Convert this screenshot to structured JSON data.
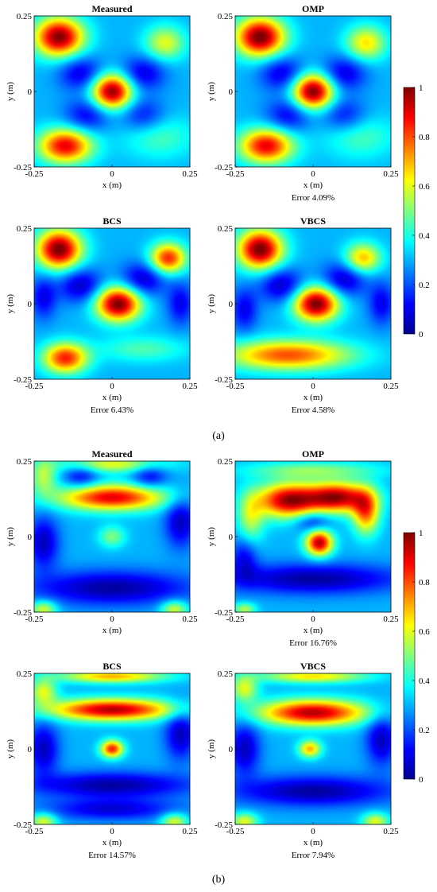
{
  "colormap": [
    "#00008f",
    "#0000ff",
    "#00ffff",
    "#ffff00",
    "#ff0000",
    "#800000"
  ],
  "chart_data": [
    {
      "type": "heatmap",
      "group": "(a)",
      "colorbar": {
        "ticks": [
          "0",
          "0.2",
          "0.4",
          "0.6",
          "0.8",
          "1"
        ],
        "range": [
          0,
          1
        ]
      },
      "panels": [
        {
          "title": "Measured",
          "xlabel": "x (m)",
          "ylabel": "y (m)",
          "xticks": [
            "-0.25",
            "0",
            "0.25"
          ],
          "yticks": [
            "0.25",
            "0",
            "-0.25"
          ],
          "xlim": [
            -0.25,
            0.25
          ],
          "ylim": [
            -0.25,
            0.25
          ],
          "error": "",
          "base": 0.3,
          "blobs": [
            {
              "x": -0.17,
              "y": 0.18,
              "amp": 0.7,
              "sx": 0.055,
              "sy": 0.045
            },
            {
              "x": 0.0,
              "y": 0.0,
              "amp": 0.7,
              "sx": 0.045,
              "sy": 0.04
            },
            {
              "x": -0.15,
              "y": -0.18,
              "amp": 0.6,
              "sx": 0.06,
              "sy": 0.04
            },
            {
              "x": 0.17,
              "y": 0.16,
              "amp": 0.3,
              "sx": 0.045,
              "sy": 0.04
            },
            {
              "x": 0.15,
              "y": -0.15,
              "amp": 0.15,
              "sx": 0.08,
              "sy": 0.05
            },
            {
              "x": -0.1,
              "y": 0.06,
              "amp": -0.22,
              "sx": 0.05,
              "sy": 0.04
            },
            {
              "x": 0.1,
              "y": 0.06,
              "amp": -0.22,
              "sx": 0.05,
              "sy": 0.04
            },
            {
              "x": -0.08,
              "y": -0.08,
              "amp": -0.2,
              "sx": 0.05,
              "sy": 0.04
            },
            {
              "x": 0.1,
              "y": -0.08,
              "amp": -0.18,
              "sx": 0.05,
              "sy": 0.04
            }
          ]
        },
        {
          "title": "OMP",
          "xlabel": "x (m)",
          "ylabel": "y (m)",
          "xticks": [
            "-0.25",
            "0",
            "0.25"
          ],
          "yticks": [
            "0.25",
            "0",
            "-0.25"
          ],
          "xlim": [
            -0.25,
            0.25
          ],
          "ylim": [
            -0.25,
            0.25
          ],
          "error": "Error 4.09%",
          "base": 0.3,
          "blobs": [
            {
              "x": -0.17,
              "y": 0.18,
              "amp": 0.72,
              "sx": 0.055,
              "sy": 0.045
            },
            {
              "x": 0.0,
              "y": 0.0,
              "amp": 0.72,
              "sx": 0.045,
              "sy": 0.04
            },
            {
              "x": -0.15,
              "y": -0.18,
              "amp": 0.6,
              "sx": 0.06,
              "sy": 0.04
            },
            {
              "x": 0.17,
              "y": 0.16,
              "amp": 0.35,
              "sx": 0.045,
              "sy": 0.04
            },
            {
              "x": 0.15,
              "y": -0.15,
              "amp": 0.15,
              "sx": 0.08,
              "sy": 0.05
            },
            {
              "x": -0.1,
              "y": 0.06,
              "amp": -0.22,
              "sx": 0.05,
              "sy": 0.04
            },
            {
              "x": 0.1,
              "y": 0.06,
              "amp": -0.22,
              "sx": 0.05,
              "sy": 0.04
            },
            {
              "x": -0.08,
              "y": -0.08,
              "amp": -0.2,
              "sx": 0.05,
              "sy": 0.04
            },
            {
              "x": 0.1,
              "y": -0.08,
              "amp": -0.18,
              "sx": 0.05,
              "sy": 0.04
            }
          ]
        },
        {
          "title": "BCS",
          "xlabel": "x (m)",
          "ylabel": "y (m)",
          "xticks": [
            "-0.25",
            "0",
            "0.25"
          ],
          "yticks": [
            "0.25",
            "0",
            "-0.25"
          ],
          "xlim": [
            -0.25,
            0.25
          ],
          "ylim": [
            -0.25,
            0.25
          ],
          "error": "Error 6.43%",
          "base": 0.3,
          "blobs": [
            {
              "x": -0.17,
              "y": 0.18,
              "amp": 0.72,
              "sx": 0.05,
              "sy": 0.045
            },
            {
              "x": 0.02,
              "y": 0.0,
              "amp": 0.72,
              "sx": 0.05,
              "sy": 0.04
            },
            {
              "x": -0.15,
              "y": -0.18,
              "amp": 0.55,
              "sx": 0.05,
              "sy": 0.035
            },
            {
              "x": 0.18,
              "y": 0.15,
              "amp": 0.55,
              "sx": 0.04,
              "sy": 0.035
            },
            {
              "x": 0.1,
              "y": -0.15,
              "amp": 0.15,
              "sx": 0.1,
              "sy": 0.03
            },
            {
              "x": -0.1,
              "y": 0.06,
              "amp": -0.25,
              "sx": 0.05,
              "sy": 0.04
            },
            {
              "x": 0.1,
              "y": 0.08,
              "amp": -0.25,
              "sx": 0.05,
              "sy": 0.04
            },
            {
              "x": -0.22,
              "y": 0.02,
              "amp": -0.2,
              "sx": 0.03,
              "sy": 0.05
            },
            {
              "x": 0.22,
              "y": 0.0,
              "amp": -0.2,
              "sx": 0.03,
              "sy": 0.05
            }
          ]
        },
        {
          "title": "VBCS",
          "xlabel": "x (m)",
          "ylabel": "y (m)",
          "xticks": [
            "-0.25",
            "0",
            "0.25"
          ],
          "yticks": [
            "0.25",
            "0",
            "-0.25"
          ],
          "xlim": [
            -0.25,
            0.25
          ],
          "ylim": [
            -0.25,
            0.25
          ],
          "error": "Error 4.58%",
          "base": 0.3,
          "blobs": [
            {
              "x": -0.17,
              "y": 0.18,
              "amp": 0.72,
              "sx": 0.05,
              "sy": 0.045
            },
            {
              "x": 0.01,
              "y": 0.0,
              "amp": 0.72,
              "sx": 0.05,
              "sy": 0.04
            },
            {
              "x": -0.08,
              "y": -0.17,
              "amp": 0.5,
              "sx": 0.14,
              "sy": 0.035
            },
            {
              "x": 0.16,
              "y": 0.15,
              "amp": 0.4,
              "sx": 0.04,
              "sy": 0.035
            },
            {
              "x": -0.1,
              "y": 0.06,
              "amp": -0.25,
              "sx": 0.05,
              "sy": 0.04
            },
            {
              "x": 0.1,
              "y": 0.08,
              "amp": -0.25,
              "sx": 0.05,
              "sy": 0.04
            },
            {
              "x": -0.22,
              "y": -0.02,
              "amp": -0.2,
              "sx": 0.03,
              "sy": 0.05
            },
            {
              "x": 0.22,
              "y": 0.0,
              "amp": -0.2,
              "sx": 0.03,
              "sy": 0.05
            }
          ]
        }
      ]
    },
    {
      "type": "heatmap",
      "group": "(b)",
      "colorbar": {
        "ticks": [
          "0",
          "0.2",
          "0.4",
          "0.6",
          "0.8",
          "1"
        ],
        "range": [
          0,
          1
        ]
      },
      "panels": [
        {
          "title": "Measured",
          "xlabel": "x (m)",
          "ylabel": "y (m)",
          "xticks": [
            "-0.25",
            "0",
            "0.25"
          ],
          "yticks": [
            "0.25",
            "0",
            "-0.25"
          ],
          "xlim": [
            -0.25,
            0.25
          ],
          "ylim": [
            -0.25,
            0.25
          ],
          "error": "",
          "base": 0.3,
          "blobs": [
            {
              "x": 0.0,
              "y": 0.13,
              "amp": 0.6,
              "sx": 0.12,
              "sy": 0.03
            },
            {
              "x": 0.0,
              "y": 0.0,
              "amp": 0.2,
              "sx": 0.03,
              "sy": 0.025
            },
            {
              "x": 0.0,
              "y": 0.24,
              "amp": 0.3,
              "sx": 0.12,
              "sy": 0.02
            },
            {
              "x": -0.22,
              "y": -0.24,
              "amp": 0.3,
              "sx": 0.03,
              "sy": 0.02
            },
            {
              "x": 0.2,
              "y": -0.24,
              "amp": 0.3,
              "sx": 0.03,
              "sy": 0.02
            },
            {
              "x": -0.22,
              "y": 0.2,
              "amp": 0.25,
              "sx": 0.03,
              "sy": 0.04
            },
            {
              "x": 0.0,
              "y": -0.17,
              "amp": -0.28,
              "sx": 0.18,
              "sy": 0.04
            },
            {
              "x": -0.22,
              "y": -0.02,
              "amp": -0.25,
              "sx": 0.035,
              "sy": 0.06
            },
            {
              "x": 0.22,
              "y": 0.05,
              "amp": -0.25,
              "sx": 0.035,
              "sy": 0.06
            },
            {
              "x": -0.1,
              "y": 0.2,
              "amp": -0.2,
              "sx": 0.04,
              "sy": 0.03
            },
            {
              "x": 0.12,
              "y": 0.2,
              "amp": -0.2,
              "sx": 0.04,
              "sy": 0.03
            }
          ]
        },
        {
          "title": "OMP",
          "xlabel": "x (m)",
          "ylabel": "y (m)",
          "xticks": [
            "-0.25",
            "0",
            "0.25"
          ],
          "yticks": [
            "0.25",
            "0",
            "-0.25"
          ],
          "xlim": [
            -0.25,
            0.25
          ],
          "ylim": [
            -0.25,
            0.25
          ],
          "error": "Error 16.76%",
          "base": 0.3,
          "blobs": [
            {
              "x": -0.08,
              "y": 0.12,
              "amp": 0.65,
              "sx": 0.07,
              "sy": 0.04
            },
            {
              "x": 0.08,
              "y": 0.13,
              "amp": 0.65,
              "sx": 0.07,
              "sy": 0.035
            },
            {
              "x": 0.02,
              "y": -0.02,
              "amp": 0.65,
              "sx": 0.03,
              "sy": 0.03
            },
            {
              "x": 0.17,
              "y": 0.08,
              "amp": 0.45,
              "sx": 0.03,
              "sy": 0.05
            },
            {
              "x": -0.2,
              "y": 0.06,
              "amp": 0.25,
              "sx": 0.03,
              "sy": 0.06
            },
            {
              "x": 0.0,
              "y": 0.22,
              "amp": 0.2,
              "sx": 0.15,
              "sy": 0.02
            },
            {
              "x": 0.0,
              "y": -0.14,
              "amp": -0.28,
              "sx": 0.2,
              "sy": 0.035
            },
            {
              "x": 0.0,
              "y": 0.05,
              "amp": -0.2,
              "sx": 0.04,
              "sy": 0.025
            },
            {
              "x": -0.22,
              "y": -0.07,
              "amp": -0.2,
              "sx": 0.03,
              "sy": 0.05
            },
            {
              "x": -0.22,
              "y": -0.24,
              "amp": 0.25,
              "sx": 0.025,
              "sy": 0.015
            }
          ]
        },
        {
          "title": "BCS",
          "xlabel": "x (m)",
          "ylabel": "y (m)",
          "xticks": [
            "-0.25",
            "0",
            "0.25"
          ],
          "yticks": [
            "0.25",
            "0",
            "-0.25"
          ],
          "xlim": [
            -0.25,
            0.25
          ],
          "ylim": [
            -0.25,
            0.25
          ],
          "error": "Error 14.57%",
          "base": 0.3,
          "blobs": [
            {
              "x": 0.0,
              "y": 0.13,
              "amp": 0.65,
              "sx": 0.14,
              "sy": 0.025
            },
            {
              "x": 0.0,
              "y": 0.0,
              "amp": 0.55,
              "sx": 0.025,
              "sy": 0.02
            },
            {
              "x": 0.0,
              "y": 0.24,
              "amp": 0.4,
              "sx": 0.12,
              "sy": 0.015
            },
            {
              "x": -0.22,
              "y": 0.19,
              "amp": 0.3,
              "sx": 0.03,
              "sy": 0.03
            },
            {
              "x": -0.22,
              "y": -0.24,
              "amp": 0.3,
              "sx": 0.03,
              "sy": 0.02
            },
            {
              "x": 0.2,
              "y": -0.24,
              "amp": 0.3,
              "sx": 0.03,
              "sy": 0.02
            },
            {
              "x": 0.0,
              "y": -0.12,
              "amp": -0.28,
              "sx": 0.18,
              "sy": 0.03
            },
            {
              "x": 0.0,
              "y": -0.2,
              "amp": -0.22,
              "sx": 0.15,
              "sy": 0.025
            },
            {
              "x": -0.22,
              "y": 0.0,
              "amp": -0.25,
              "sx": 0.035,
              "sy": 0.06
            },
            {
              "x": 0.22,
              "y": 0.05,
              "amp": -0.25,
              "sx": 0.035,
              "sy": 0.06
            }
          ]
        },
        {
          "title": "VBCS",
          "xlabel": "x (m)",
          "ylabel": "y (m)",
          "xticks": [
            "-0.25",
            "0",
            "0.25"
          ],
          "yticks": [
            "0.25",
            "0",
            "-0.25"
          ],
          "xlim": [
            -0.25,
            0.25
          ],
          "ylim": [
            -0.25,
            0.25
          ],
          "error": "Error 7.94%",
          "base": 0.3,
          "blobs": [
            {
              "x": 0.0,
              "y": 0.12,
              "amp": 0.65,
              "sx": 0.12,
              "sy": 0.03
            },
            {
              "x": -0.01,
              "y": 0.0,
              "amp": 0.4,
              "sx": 0.025,
              "sy": 0.02
            },
            {
              "x": 0.0,
              "y": 0.24,
              "amp": 0.35,
              "sx": 0.12,
              "sy": 0.015
            },
            {
              "x": -0.22,
              "y": 0.2,
              "amp": 0.3,
              "sx": 0.03,
              "sy": 0.03
            },
            {
              "x": -0.22,
              "y": -0.24,
              "amp": 0.3,
              "sx": 0.03,
              "sy": 0.02
            },
            {
              "x": 0.2,
              "y": -0.24,
              "amp": 0.3,
              "sx": 0.03,
              "sy": 0.02
            },
            {
              "x": 0.0,
              "y": -0.14,
              "amp": -0.28,
              "sx": 0.18,
              "sy": 0.035
            },
            {
              "x": -0.22,
              "y": 0.0,
              "amp": -0.25,
              "sx": 0.035,
              "sy": 0.06
            },
            {
              "x": 0.22,
              "y": 0.03,
              "amp": -0.25,
              "sx": 0.035,
              "sy": 0.06
            }
          ]
        }
      ]
    }
  ]
}
